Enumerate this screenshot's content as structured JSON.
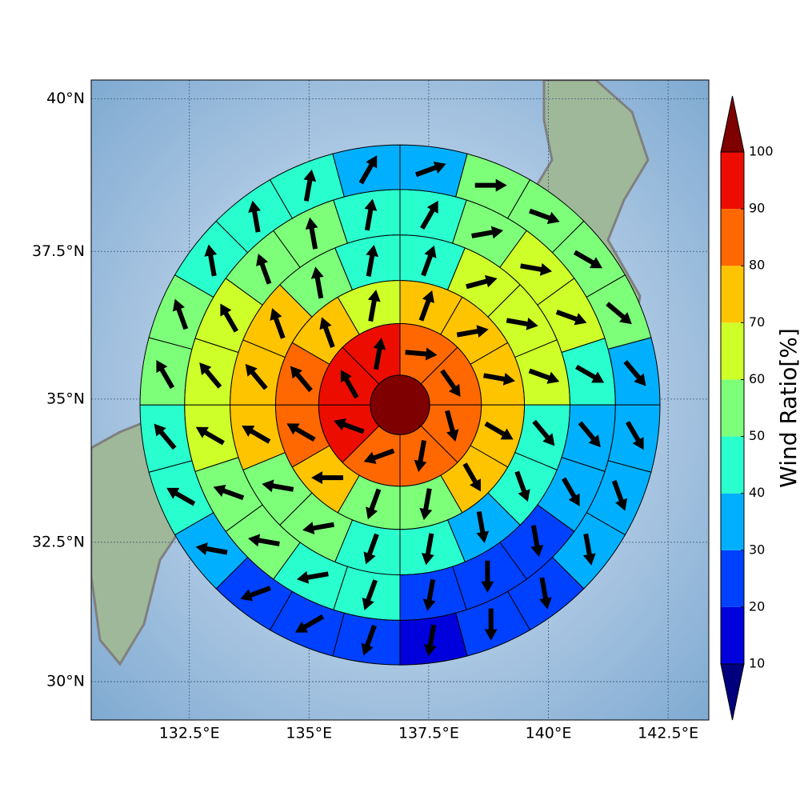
{
  "chart_data": {
    "type": "sectors",
    "xlim": [
      130.45,
      143.35
    ],
    "ylim": [
      29.3,
      40.3
    ],
    "projection": "mercator",
    "grid": true,
    "xticks": [
      {
        "value": 132.5,
        "label": "132.5°E"
      },
      {
        "value": 135,
        "label": "135°E"
      },
      {
        "value": 137.5,
        "label": "137.5°E"
      },
      {
        "value": 140,
        "label": "140°E"
      },
      {
        "value": 142.5,
        "label": "142.5°E"
      }
    ],
    "yticks": [
      {
        "value": 30,
        "label": "30°N"
      },
      {
        "value": 32.5,
        "label": "32.5°N"
      },
      {
        "value": 35,
        "label": "35°N"
      },
      {
        "value": 37.5,
        "label": "37.5°N"
      },
      {
        "value": 40,
        "label": "40°N"
      }
    ],
    "center": [
      136.9,
      34.9
    ],
    "center_radius": 0.62,
    "center_value": 102,
    "rings": [
      {
        "radii": [
          0.62,
          1.7
        ],
        "values": [
          85,
          85,
          85,
          85,
          85,
          95,
          95,
          95
        ],
        "directions": [
          95,
          145,
          165,
          190,
          250,
          290,
          330,
          10
        ]
      },
      {
        "radii": [
          1.7,
          2.6
        ],
        "values": [
          75,
          75,
          75,
          75,
          75,
          55,
          55,
          75,
          85,
          85,
          75,
          65
        ],
        "directions": [
          20,
          80,
          100,
          120,
          150,
          190,
          200,
          270,
          300,
          320,
          340,
          10
        ]
      },
      {
        "radii": [
          2.6,
          3.55
        ],
        "values": [
          45,
          65,
          65,
          65,
          45,
          45,
          35,
          45,
          45,
          55,
          55,
          75,
          75,
          75,
          55,
          45
        ],
        "directions": [
          20,
          75,
          100,
          110,
          140,
          160,
          170,
          190,
          200,
          260,
          280,
          300,
          320,
          340,
          350,
          10
        ]
      },
      {
        "radii": [
          3.55,
          4.5
        ],
        "values": [
          45,
          55,
          65,
          65,
          45,
          35,
          35,
          25,
          25,
          25,
          45,
          45,
          55,
          55,
          65,
          65,
          65,
          55,
          55,
          45
        ],
        "directions": [
          30,
          80,
          100,
          110,
          120,
          140,
          150,
          170,
          180,
          190,
          200,
          260,
          280,
          290,
          300,
          320,
          330,
          340,
          350,
          10
        ]
      },
      {
        "radii": [
          4.5,
          5.43
        ],
        "values": [
          35,
          55,
          55,
          55,
          55,
          35,
          35,
          35,
          35,
          25,
          25,
          15,
          25,
          25,
          25,
          35,
          45,
          45,
          55,
          55,
          45,
          45,
          45,
          35
        ],
        "directions": [
          70,
          90,
          110,
          120,
          130,
          140,
          150,
          160,
          170,
          170,
          180,
          190,
          200,
          240,
          250,
          280,
          300,
          320,
          330,
          340,
          350,
          350,
          10,
          30
        ]
      }
    ],
    "colorbar": {
      "label": "Wind Ratio[%]",
      "ticks": [
        10,
        20,
        30,
        40,
        50,
        60,
        70,
        80,
        90,
        100
      ],
      "colors": [
        "#0000dd",
        "#0040ff",
        "#00b0ff",
        "#29ffce",
        "#7dff7a",
        "#ceff29",
        "#ffc400",
        "#ff6800",
        "#ed0d00"
      ],
      "under_color": "#00007f",
      "over_color": "#7f0000"
    }
  }
}
